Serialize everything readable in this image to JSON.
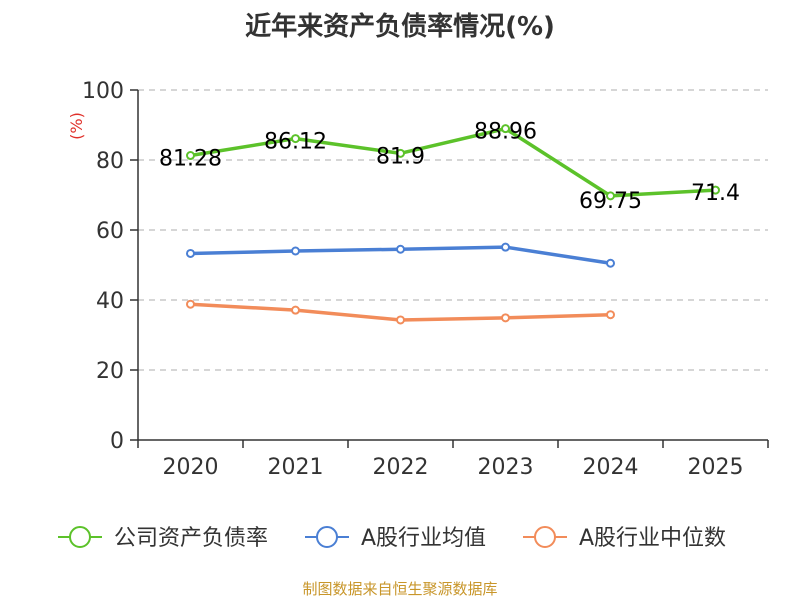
{
  "title": "近年来资产负债率情况(%)",
  "source": "制图数据来自恒生聚源数据库",
  "chart_data": {
    "type": "line",
    "title": "近年来资产负债率情况(%)",
    "ylabel": "(%)",
    "xlabel": "",
    "categories": [
      "2020",
      "2021",
      "2022",
      "2023",
      "2024",
      "2025"
    ],
    "ylim": [
      0,
      100
    ],
    "yticks": [
      0,
      20,
      40,
      60,
      80,
      100
    ],
    "grid": "horizontal dashed",
    "legend_position": "bottom",
    "series": [
      {
        "name": "公司资产负债率",
        "color": "#5cc22a",
        "values": [
          81.28,
          86.12,
          81.9,
          88.96,
          69.75,
          71.4
        ],
        "labels": [
          "81.28",
          "86.12",
          "81.9",
          "88.96",
          "69.75",
          "71.4"
        ]
      },
      {
        "name": "A股行业均值",
        "color": "#4a7fd4",
        "values": [
          53.3,
          54.0,
          54.5,
          55.1,
          50.5,
          null
        ]
      },
      {
        "name": "A股行业中位数",
        "color": "#f28c5a",
        "values": [
          38.8,
          37.1,
          34.3,
          34.9,
          35.8,
          null
        ]
      }
    ]
  }
}
